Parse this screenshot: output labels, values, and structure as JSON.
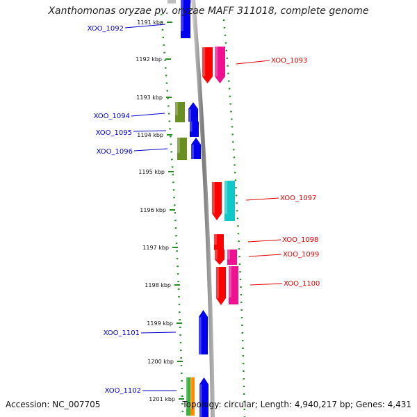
{
  "title": "Xanthomonas oryzae pv. oryzae MAFF 311018, complete genome",
  "footer": {
    "accession": "Accession: NC_007705",
    "stats": "Topology: circular; Length: 4,940,217 bp; Genes: 4,431"
  },
  "colors": {
    "forward_label": "#0000cc",
    "reverse_label": "#dd0000",
    "dotted_ring": "#228b22",
    "backbone": "#8a8a8a"
  },
  "ticks": [
    "1191 kbp",
    "1192 kbp",
    "1193 kbp",
    "1194 kbp",
    "1195 kbp",
    "1196 kbp",
    "1197 kbp",
    "1198 kbp",
    "1199 kbp",
    "1200 kbp",
    "1201 kbp"
  ],
  "genes": [
    {
      "label": "XOO_1092",
      "strand": "forward"
    },
    {
      "label": "XOO_1093",
      "strand": "reverse"
    },
    {
      "label": "XOO_1094",
      "strand": "forward"
    },
    {
      "label": "XOO_1095",
      "strand": "forward"
    },
    {
      "label": "XOO_1096",
      "strand": "forward"
    },
    {
      "label": "XOO_1097",
      "strand": "reverse"
    },
    {
      "label": "XOO_1098",
      "strand": "reverse"
    },
    {
      "label": "XOO_1099",
      "strand": "reverse"
    },
    {
      "label": "XOO_1100",
      "strand": "reverse"
    },
    {
      "label": "XOO_1101",
      "strand": "forward"
    },
    {
      "label": "XOO_1102",
      "strand": "forward"
    }
  ]
}
